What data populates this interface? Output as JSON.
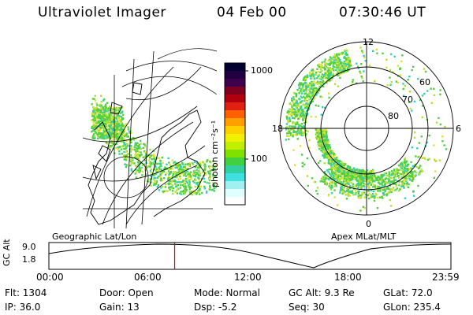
{
  "header": {
    "instrument": "Ultraviolet Imager",
    "date": "04 Feb 00",
    "time": "07:30:46 UT"
  },
  "left_panel": {
    "caption": "Geographic Lat/Lon"
  },
  "right_panel": {
    "caption": "Apex MLat/MLT",
    "mlt_labels": [
      "12",
      "18",
      "6",
      "0"
    ],
    "mlat_labels": [
      "60",
      "70",
      "80"
    ]
  },
  "colorbar": {
    "unit_label": "photon cm⁻²s⁻¹",
    "ticks": [
      "1000",
      "100"
    ],
    "colors": [
      "#000030",
      "#200040",
      "#400050",
      "#800020",
      "#b00010",
      "#e02010",
      "#ff6000",
      "#ffa000",
      "#ffd000",
      "#f0f000",
      "#c0f000",
      "#80e000",
      "#40d040",
      "#30d0a0",
      "#40e0e0",
      "#a0f0f0",
      "#e0ffff",
      "#ffffff"
    ]
  },
  "timeline": {
    "axis_label": "GC Alt",
    "y_ticks": [
      "9.0",
      "1.8"
    ],
    "x_ticks": [
      "00:00",
      "06:00",
      "12:00",
      "18:00",
      "23:59"
    ],
    "marker_fraction": 0.3128,
    "marker_color": "#e00000"
  },
  "info_rows": [
    [
      "Flt: 1304",
      "Door: Open",
      "Mode: Normal",
      "GC Alt: 9.3 Re",
      "GLat:  72.0"
    ],
    [
      "IP: 36.0",
      "Gain: 13",
      "Dsp:    -5.2",
      "Seq: 30",
      "GLon: 235.4"
    ]
  ],
  "aurora_colors": {
    "green": "#50d040",
    "cyan": "#30d0c0",
    "lime": "#b0e030",
    "yellow": "#e0e030"
  }
}
